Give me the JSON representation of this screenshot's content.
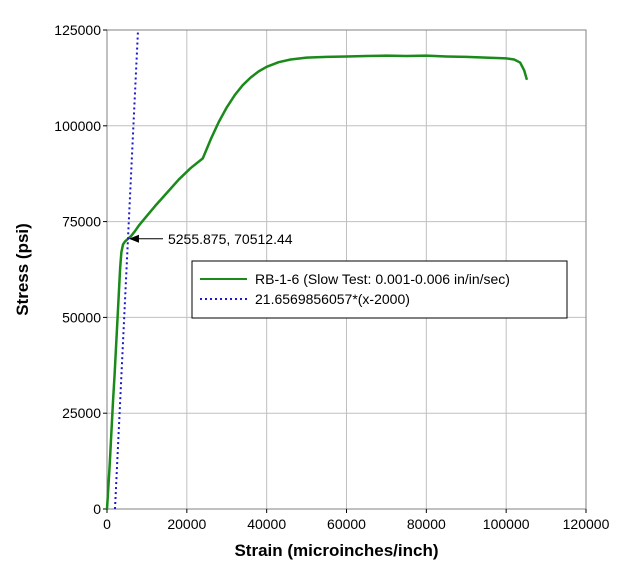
{
  "chart_data": {
    "type": "line",
    "title": "",
    "xlabel": "Strain (microinches/inch)",
    "ylabel": "Stress (psi)",
    "xlim": [
      0,
      120000
    ],
    "ylim": [
      0,
      125000
    ],
    "x_ticks": [
      0,
      20000,
      40000,
      60000,
      80000,
      100000,
      120000
    ],
    "y_ticks": [
      0,
      25000,
      50000,
      75000,
      100000,
      125000
    ],
    "x_tick_labels": [
      "0",
      "20000",
      "40000",
      "60000",
      "80000",
      "100000",
      "120000"
    ],
    "y_tick_labels": [
      "0",
      "25000",
      "50000",
      "75000",
      "100000",
      "125000"
    ],
    "grid": true,
    "legend_position": "center-right",
    "series": [
      {
        "name": "RB-1-6 (Slow Test: 0.001-0.006 in/in/sec)",
        "style": "solid",
        "color": "#1a8a1a",
        "x": [
          0,
          300,
          700,
          1100,
          1500,
          1900,
          2300,
          2700,
          3000,
          3300,
          3600,
          4000,
          4500,
          5255.875,
          6000,
          7000,
          8000,
          10000,
          12000,
          15000,
          18000,
          21000,
          24000,
          26000,
          28000,
          30000,
          32000,
          34000,
          36000,
          38000,
          40000,
          43000,
          46000,
          50000,
          55000,
          60000,
          65000,
          70000,
          75000,
          80000,
          85000,
          90000,
          95000,
          100000,
          102000,
          103500,
          104500,
          105200
        ],
        "y": [
          0,
          5000,
          12000,
          20000,
          28000,
          35000,
          43000,
          51000,
          57000,
          63000,
          67000,
          69000,
          69800,
          70512.44,
          71200,
          72500,
          74000,
          76500,
          79000,
          82500,
          86000,
          89000,
          91500,
          96500,
          101000,
          104800,
          108000,
          110600,
          112600,
          114200,
          115400,
          116600,
          117300,
          117800,
          118000,
          118100,
          118200,
          118300,
          118200,
          118300,
          118100,
          118000,
          117800,
          117600,
          117300,
          116500,
          114500,
          112000
        ]
      },
      {
        "name": "21.6569856057*(x-2000)",
        "style": "dotted",
        "color": "#1a1acc",
        "x": [
          2000,
          7771.5
        ],
        "y": [
          0,
          125000
        ]
      }
    ],
    "annotations": [
      {
        "text": "5255.875, 70512.44",
        "x": 5255.875,
        "y": 70512.44
      }
    ]
  }
}
